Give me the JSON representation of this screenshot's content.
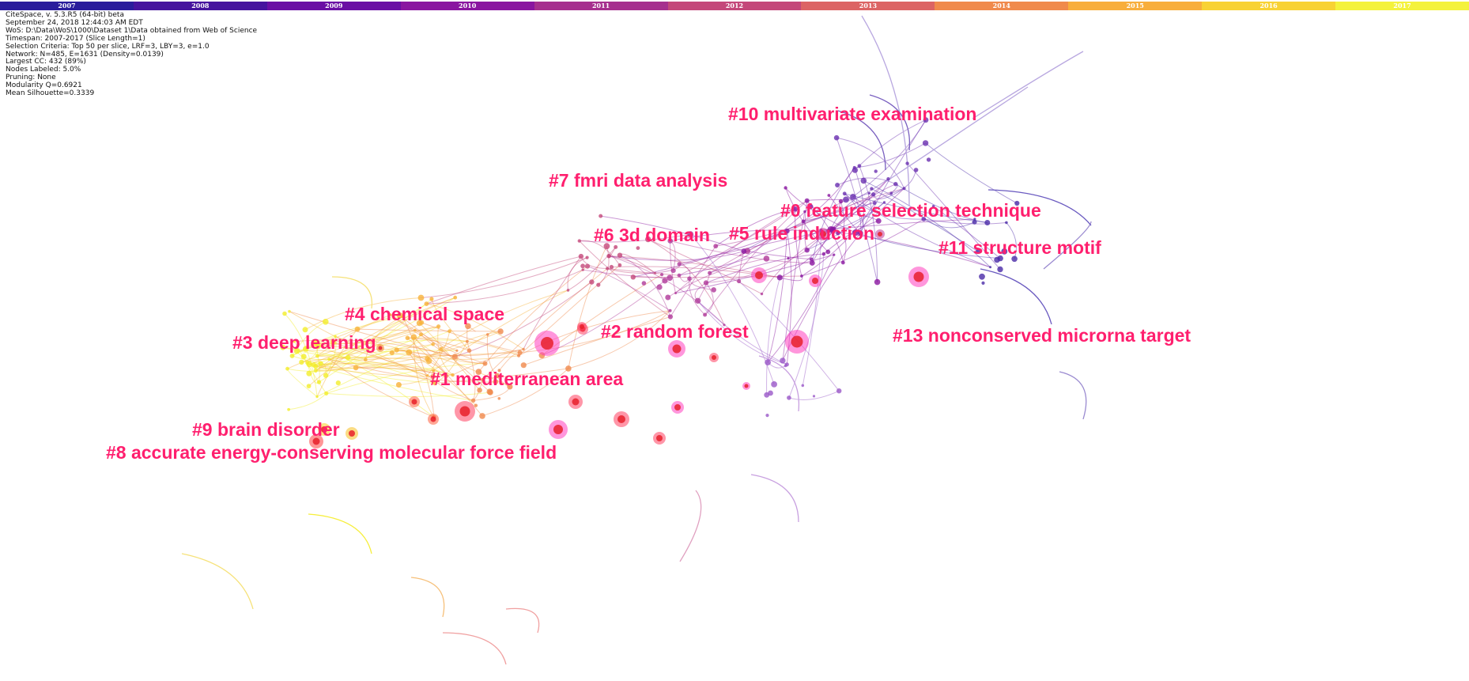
{
  "timeline": {
    "years": [
      "2007",
      "2008",
      "2009",
      "2010",
      "2011",
      "2012",
      "2013",
      "2014",
      "2015",
      "2016",
      "2017"
    ],
    "colors": [
      "#2a1d9c",
      "#46149e",
      "#6a0fa4",
      "#8a16a0",
      "#a6308e",
      "#c4487a",
      "#dc6464",
      "#f08a4c",
      "#f8ae3c",
      "#f8d234",
      "#f4f23c"
    ]
  },
  "info": {
    "lines": [
      "CiteSpace, v. 5.3.R5 (64-bit) beta",
      "September 24, 2018 12:44:03 AM EDT",
      "WoS: D:\\Data\\WoS\\1000\\Dataset 1\\Data obtained from Web of Science",
      "Timespan: 2007-2017 (Slice Length=1)",
      "Selection Criteria: Top 50 per slice, LRF=3, LBY=3, e=1.0",
      "Network: N=485, E=1631 (Density=0.0139)",
      "Largest CC: 432 (89%)",
      "Nodes Labeled: 5.0%",
      "Pruning: None",
      "Modularity Q=0.6921",
      "Mean Silhouette=0.3339"
    ]
  },
  "clusters": [
    {
      "label": "#10 multivariate examination"
    },
    {
      "label": "#7 fmri data analysis"
    },
    {
      "label": "#0 feature selection technique"
    },
    {
      "label": "#6 3d domain"
    },
    {
      "label": "#5 rule induction"
    },
    {
      "label": "#11 structure motif"
    },
    {
      "label": "#4 chemical space"
    },
    {
      "label": "#2 random forest"
    },
    {
      "label": "#3 deep learning"
    },
    {
      "label": "#13 nonconserved microrna target"
    },
    {
      "label": "#1 mediterranean area"
    },
    {
      "label": "#9 brain disorder"
    },
    {
      "label": "#8 accurate energy-conserving molecular force field"
    }
  ]
}
